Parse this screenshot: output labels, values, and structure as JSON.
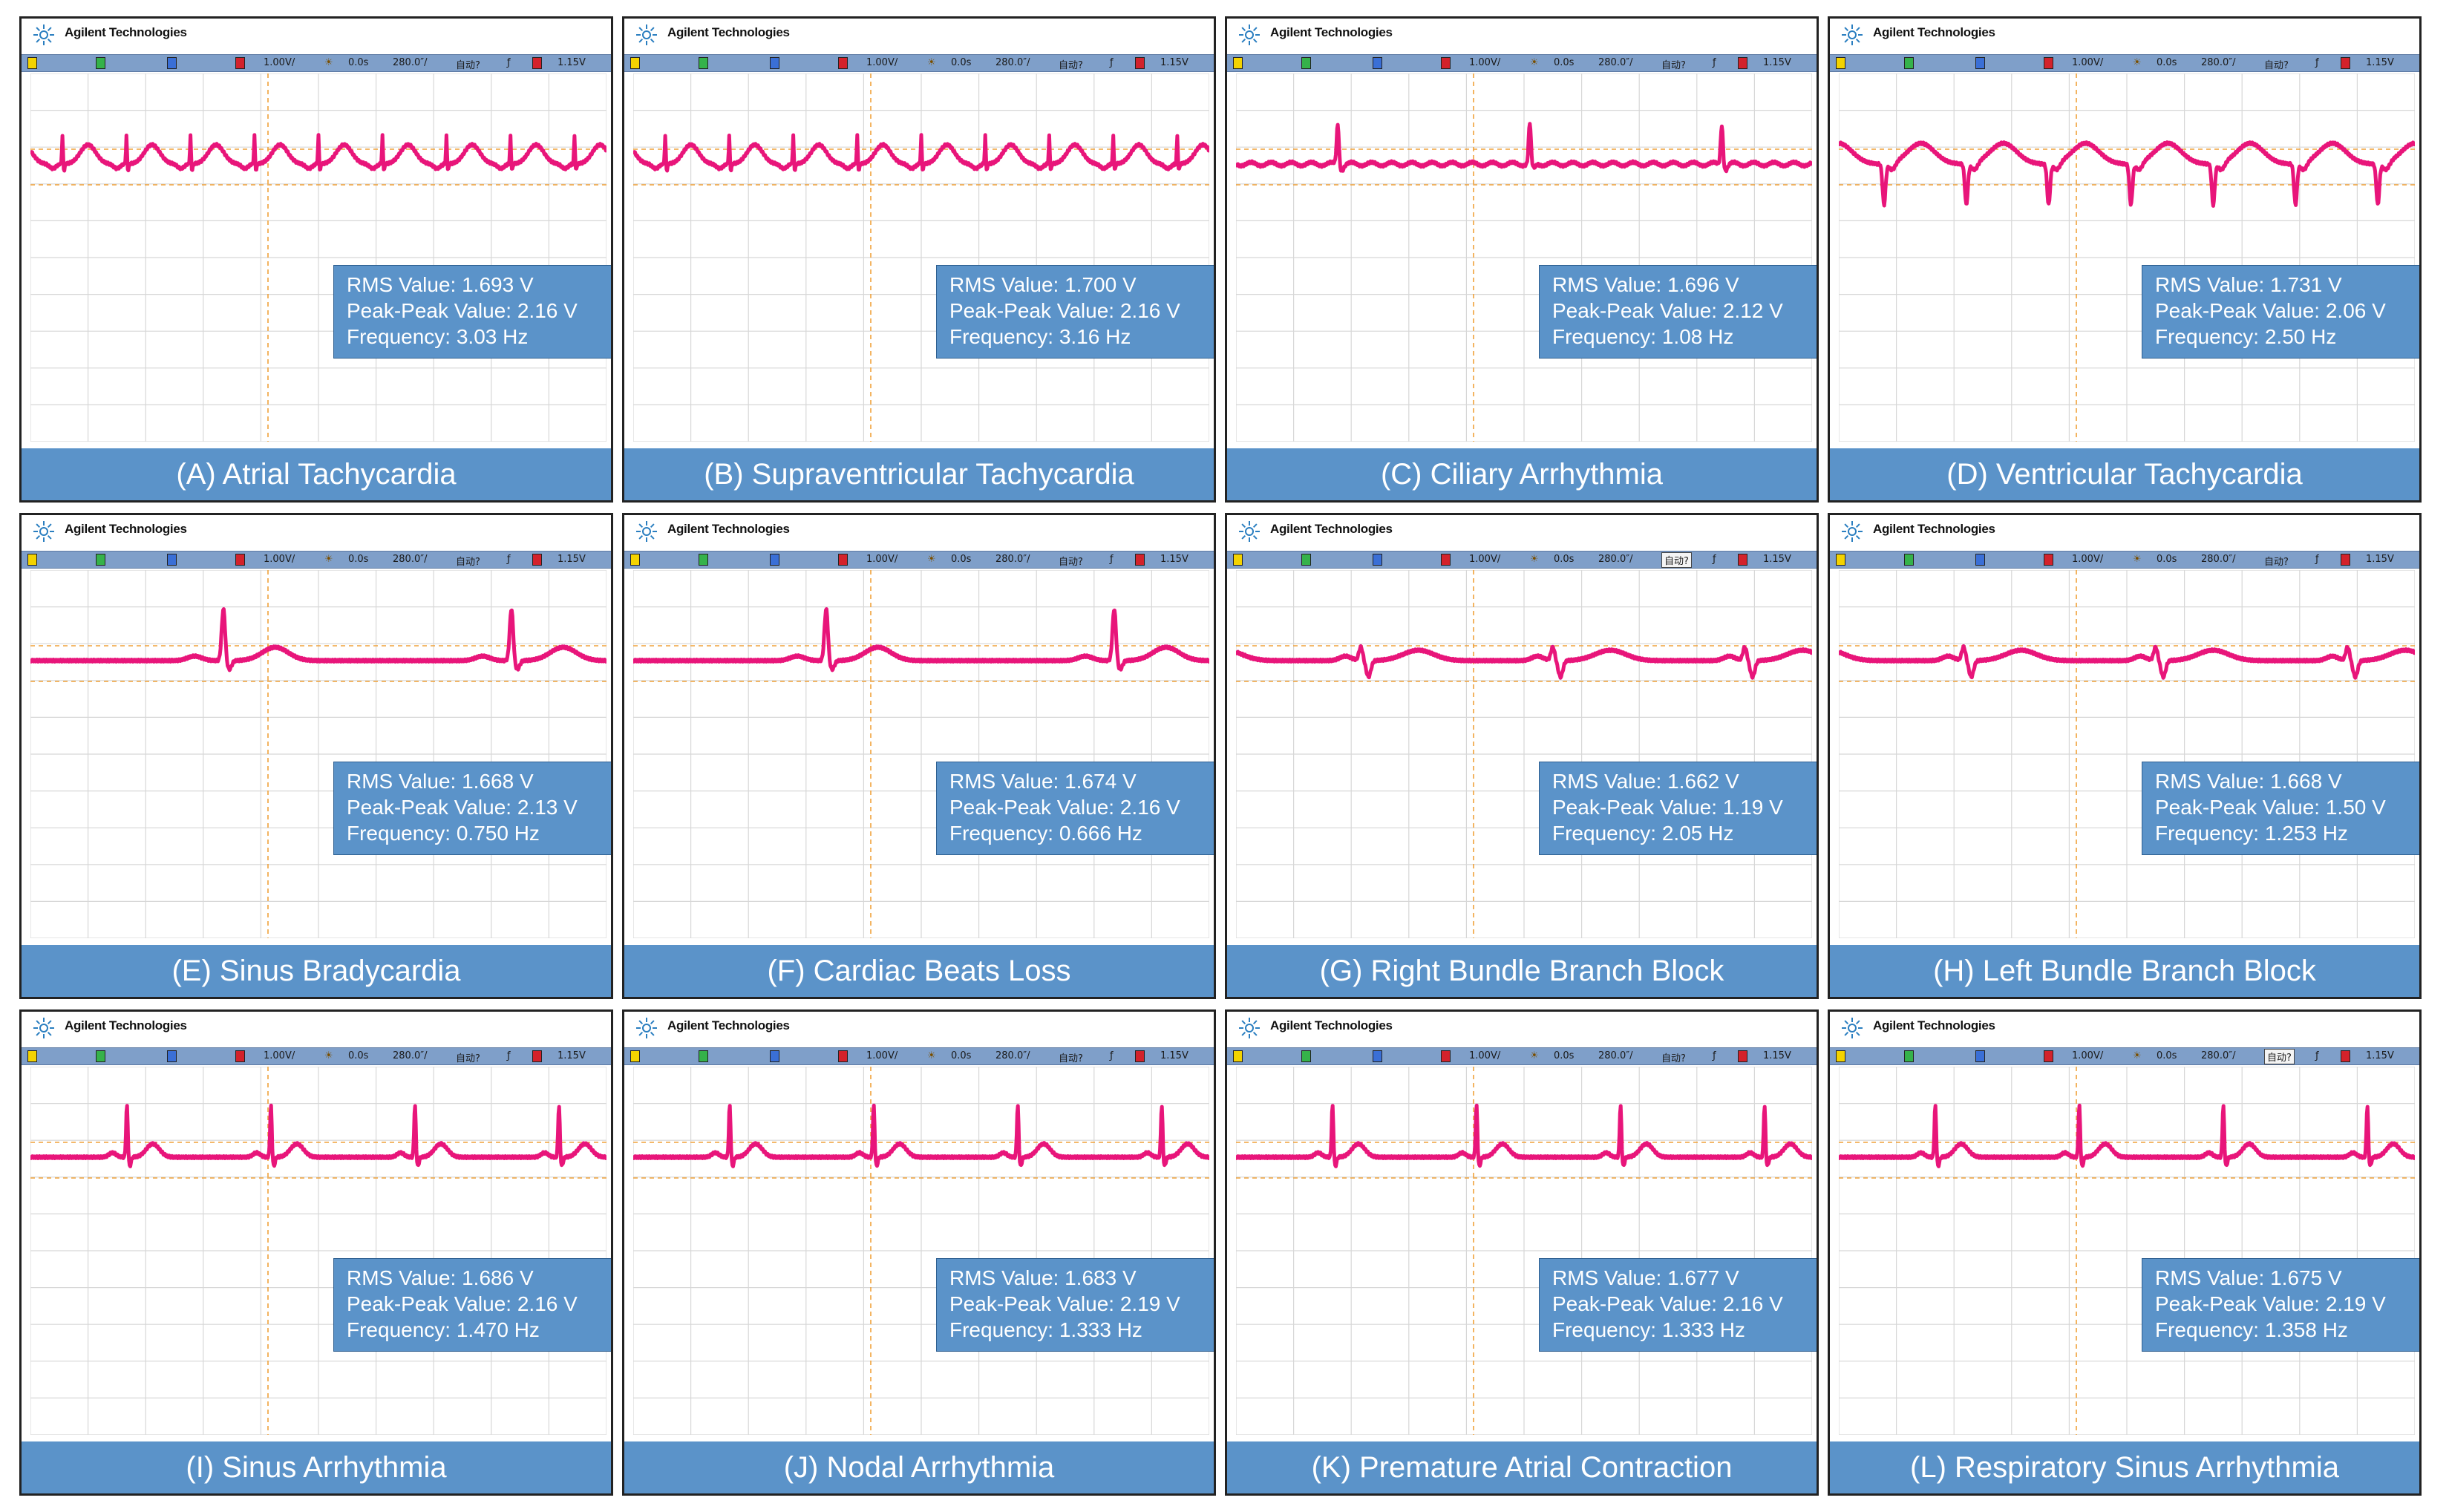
{
  "brand": "Agilent Technologies",
  "colors": {
    "trace": "#e8157a",
    "grid": "#d7d7d7",
    "cursor": "#f0a23a",
    "status_bar": "#7f9fc9",
    "measure_box": "#5b93c9",
    "caption_bar": "#5b93c9"
  },
  "status_bar": {
    "scale": "1.00V/",
    "delay": "0.0s",
    "timebase": "280.0″/",
    "trigger_mode": "自动?",
    "slope": "ƒ",
    "trigger_level": "1.15V",
    "channel_labels": [
      "1",
      "2",
      "3",
      "4"
    ]
  },
  "labels": {
    "rms": "RMS Value:",
    "peak_peak": "Peak-Peak Value:",
    "frequency": "Frequency:"
  },
  "chart_data": [
    {
      "type": "line",
      "title": "(A) Atrial Tachycardia",
      "rms": "1.693 V",
      "peak_peak": "2.16 V",
      "frequency": "3.03 Hz",
      "beats_per_screen": 9,
      "waveform": "tachy"
    },
    {
      "type": "line",
      "title": "(B) Supraventricular Tachycardia",
      "rms": "1.700 V",
      "peak_peak": "2.16 V",
      "frequency": "3.16 Hz",
      "beats_per_screen": 9,
      "waveform": "tachy"
    },
    {
      "type": "line",
      "title": "(C) Ciliary Arrhythmia",
      "rms": "1.696 V",
      "peak_peak": "2.12 V",
      "frequency": "1.08 Hz",
      "beats_per_screen": 3,
      "waveform": "fibrillation"
    },
    {
      "type": "line",
      "title": "(D) Ventricular Tachycardia",
      "rms": "1.731 V",
      "peak_peak": "2.06 V",
      "frequency": "2.50 Hz",
      "beats_per_screen": 7,
      "waveform": "ventricular"
    },
    {
      "type": "line",
      "title": "(E) Sinus Bradycardia",
      "rms": "1.668 V",
      "peak_peak": "2.13 V",
      "frequency": "0.750 Hz",
      "beats_per_screen": 2,
      "waveform": "sinus"
    },
    {
      "type": "line",
      "title": "(F) Cardiac Beats Loss",
      "rms": "1.674 V",
      "peak_peak": "2.16 V",
      "frequency": "0.666 Hz",
      "beats_per_screen": 2,
      "waveform": "sinus"
    },
    {
      "type": "line",
      "title": "(G) Right Bundle Branch Block",
      "rms": "1.662 V",
      "peak_peak": "1.19 V",
      "frequency": "2.05 Hz",
      "beats_per_screen": 3,
      "waveform": "bundle"
    },
    {
      "type": "line",
      "title": "(H) Left Bundle Branch Block",
      "rms": "1.668 V",
      "peak_peak": "1.50 V",
      "frequency": "1.253 Hz",
      "beats_per_screen": 3,
      "waveform": "bundle"
    },
    {
      "type": "line",
      "title": "(I) Sinus Arrhythmia",
      "rms": "1.686 V",
      "peak_peak": "2.16 V",
      "frequency": "1.470 Hz",
      "beats_per_screen": 4,
      "waveform": "sinus"
    },
    {
      "type": "line",
      "title": "(J) Nodal Arrhythmia",
      "rms": "1.683 V",
      "peak_peak": "2.19 V",
      "frequency": "1.333 Hz",
      "beats_per_screen": 4,
      "waveform": "sinus"
    },
    {
      "type": "line",
      "title": "(K) Premature Atrial Contraction",
      "rms": "1.677 V",
      "peak_peak": "2.16 V",
      "frequency": "1.333 Hz",
      "beats_per_screen": 4,
      "waveform": "sinus"
    },
    {
      "type": "line",
      "title": "(L) Respiratory Sinus Arrhythmia",
      "rms": "1.675 V",
      "peak_peak": "2.19 V",
      "frequency": "1.358 Hz",
      "beats_per_screen": 4,
      "waveform": "sinus"
    }
  ]
}
